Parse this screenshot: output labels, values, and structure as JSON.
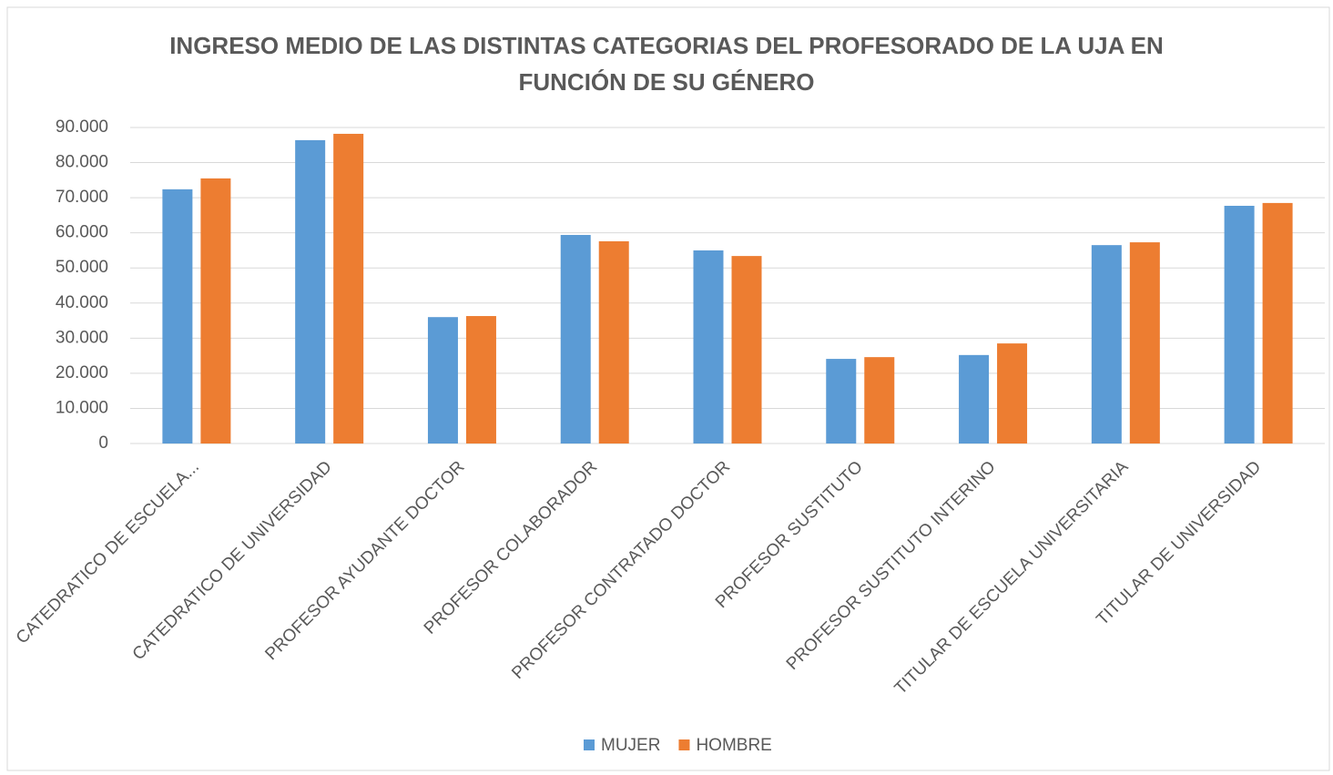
{
  "chart_data": {
    "type": "bar",
    "title": "INGRESO MEDIO DE LAS DISTINTAS CATEGORIAS DEL PROFESORADO DE LA UJA EN FUNCIÓN DE SU GÉNERO",
    "categories": [
      "CATEDRATICO DE ESCUELA...",
      "CATEDRATICO DE UNIVERSIDAD",
      "PROFESOR AYUDANTE DOCTOR",
      "PROFESOR COLABORADOR",
      "PROFESOR CONTRATADO DOCTOR",
      "PROFESOR SUSTITUTO",
      "PROFESOR SUSTITUTO INTERINO",
      "TITULAR DE ESCUELA UNIVERSITARIA",
      "TITULAR DE UNIVERSIDAD"
    ],
    "series": [
      {
        "name": "MUJER",
        "color": "#5b9bd5",
        "values": [
          72400,
          86400,
          36000,
          59400,
          55000,
          24100,
          25200,
          56500,
          67700
        ]
      },
      {
        "name": "HOMBRE",
        "color": "#ed7d31",
        "values": [
          75500,
          88200,
          36300,
          57600,
          53400,
          24600,
          28500,
          57300,
          68500
        ]
      }
    ],
    "ylim": [
      0,
      90000
    ],
    "yticks": [
      0,
      {
        "value": 10000,
        "label": "10.000"
      },
      {
        "value": 20000,
        "label": "20.000"
      },
      {
        "value": 30000,
        "label": "30.000"
      },
      {
        "value": 40000,
        "label": "40.000"
      },
      {
        "value": 50000,
        "label": "50.000"
      },
      {
        "value": 60000,
        "label": "60.000"
      },
      {
        "value": 70000,
        "label": "70.000"
      },
      {
        "value": 80000,
        "label": "80.000"
      },
      {
        "value": 90000,
        "label": "90.000"
      }
    ],
    "grid": true,
    "legend": "bottom"
  }
}
